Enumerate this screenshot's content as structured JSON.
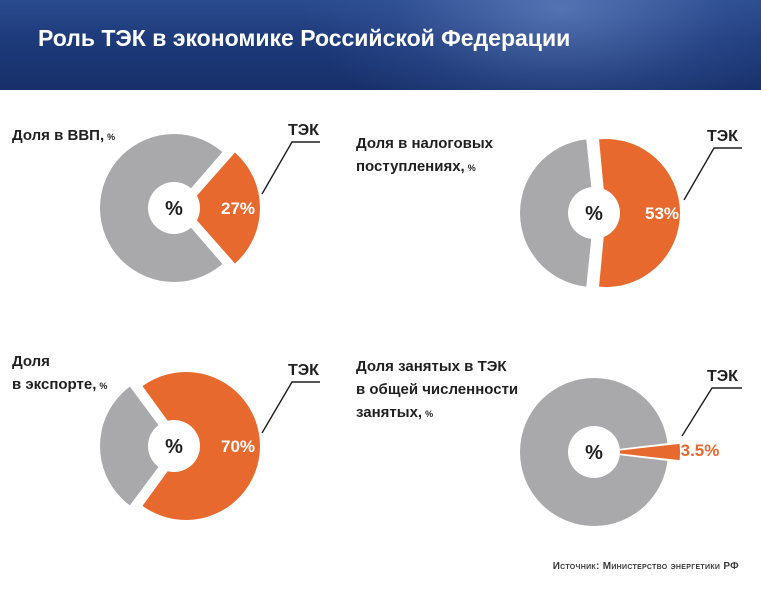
{
  "header": {
    "title": "Роль ТЭК в экономике Российской Федерации"
  },
  "colors": {
    "tek": "#E8692E",
    "other": "#A9A9AC",
    "center": "#FFFFFF"
  },
  "source": "Источник: Министерство энергетики РФ",
  "chart_data": [
    {
      "type": "pie",
      "title_lines": [
        "Доля в ВВП,"
      ],
      "unit": "%",
      "center_label": "%",
      "callout": "ТЭК",
      "slices": [
        {
          "name": "ТЭК",
          "value": 27,
          "label": "27%"
        }
      ]
    },
    {
      "type": "pie",
      "title_lines": [
        "Доля в налоговых",
        "поступлениях,"
      ],
      "unit": "%",
      "center_label": "%",
      "callout": "ТЭК",
      "slices": [
        {
          "name": "ТЭК",
          "value": 53,
          "label": "53%"
        }
      ]
    },
    {
      "type": "pie",
      "title_lines": [
        "Доля",
        "в экспорте,"
      ],
      "unit": "%",
      "center_label": "%",
      "callout": "ТЭК",
      "slices": [
        {
          "name": "ТЭК",
          "value": 70,
          "label": "70%"
        }
      ]
    },
    {
      "type": "pie",
      "title_lines": [
        "Доля занятых в ТЭК",
        "в общей численности",
        "занятых,"
      ],
      "unit": "%",
      "center_label": "%",
      "callout": "ТЭК",
      "slices": [
        {
          "name": "ТЭК",
          "value": 3.5,
          "label": "3.5%"
        }
      ]
    }
  ]
}
